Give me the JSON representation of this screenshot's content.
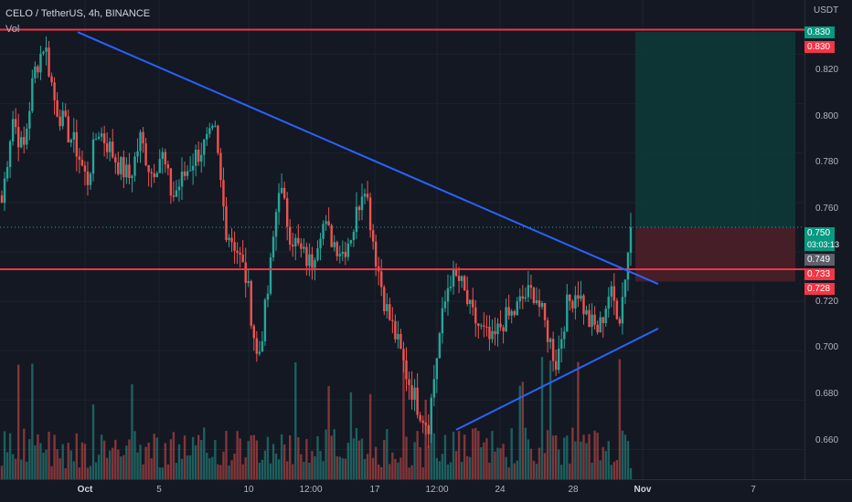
{
  "header": {
    "symbol_title": "CELO / TetherUS, 4h, BINANCE",
    "volume_label": "Vol",
    "currency": "USDT"
  },
  "price_axis": {
    "ticks": [
      "0.820",
      "0.800",
      "0.780",
      "0.760",
      "0.720",
      "0.700",
      "0.680",
      "0.660"
    ]
  },
  "price_tags": {
    "resistance_top": {
      "value": "0.830",
      "color": "#f23645"
    },
    "target_top": {
      "value": "0.830",
      "color": "#089981"
    },
    "last_price": {
      "value": "0.750",
      "color": "#089981"
    },
    "countdown": {
      "value": "03:03:13",
      "color": "#089981"
    },
    "crosshair": {
      "value": "0.749",
      "color": "#5d606b"
    },
    "support_line": {
      "value": "0.733",
      "color": "#f23645"
    },
    "stop": {
      "value": "0.728",
      "color": "#f23645"
    }
  },
  "time_axis": {
    "labels": [
      {
        "text": "Oct",
        "bold": true
      },
      {
        "text": "5",
        "bold": false
      },
      {
        "text": "10",
        "bold": false
      },
      {
        "text": "12:00",
        "bold": false
      },
      {
        "text": "17",
        "bold": false
      },
      {
        "text": "12:00",
        "bold": false
      },
      {
        "text": "24",
        "bold": false
      },
      {
        "text": "28",
        "bold": false
      },
      {
        "text": "Nov",
        "bold": true
      },
      {
        "text": "7",
        "bold": false
      }
    ]
  },
  "colors": {
    "bull": "#26a69a",
    "bear": "#ef5350",
    "trendline": "#2962ff",
    "level": "#f23645",
    "target_zone": "#0d3b3a",
    "stop_zone": "#4a1f29"
  },
  "chart_data": {
    "type": "candlestick",
    "symbol": "CELO / TetherUS",
    "interval": "4h",
    "exchange": "BINANCE",
    "ylim": [
      0.648,
      0.842
    ],
    "horizontal_levels": [
      0.83,
      0.733
    ],
    "descending_trendline": [
      [
        0,
        0.829
      ],
      [
        100,
        0.727
      ]
    ],
    "ascending_trendline": [
      [
        60,
        0.668
      ],
      [
        100,
        0.709
      ]
    ],
    "position": {
      "entry": 0.75,
      "target": 0.829,
      "stop": 0.728
    },
    "last_price": 0.75,
    "path": [
      0.76,
      0.795,
      0.78,
      0.812,
      0.825,
      0.8,
      0.79,
      0.782,
      0.768,
      0.79,
      0.783,
      0.775,
      0.77,
      0.786,
      0.772,
      0.78,
      0.762,
      0.77,
      0.778,
      0.783,
      0.788,
      0.75,
      0.742,
      0.728,
      0.695,
      0.725,
      0.768,
      0.748,
      0.74,
      0.735,
      0.752,
      0.745,
      0.74,
      0.75,
      0.77,
      0.74,
      0.718,
      0.705,
      0.69,
      0.678,
      0.67,
      0.705,
      0.73,
      0.728,
      0.715,
      0.708,
      0.703,
      0.712,
      0.715,
      0.722,
      0.724,
      0.71,
      0.695,
      0.718,
      0.725,
      0.712,
      0.708,
      0.724,
      0.714,
      0.75
    ]
  }
}
